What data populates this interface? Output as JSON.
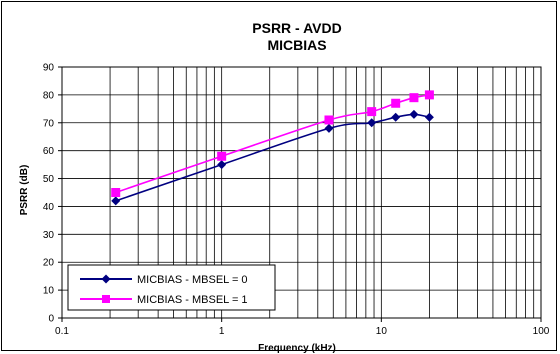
{
  "chart_data": {
    "type": "line",
    "title": "PSRR - AVDD",
    "subtitle": "MICBIAS",
    "xlabel": "Frequency (kHz)",
    "ylabel": "PSRR (dB)",
    "xscale": "log",
    "xlim": [
      0.1,
      100
    ],
    "ylim": [
      0,
      90
    ],
    "x_ticks": [
      0.1,
      1,
      10,
      100
    ],
    "x_tick_labels": [
      "0.1",
      "1",
      "10",
      "100"
    ],
    "y_ticks": [
      0,
      10,
      20,
      30,
      40,
      50,
      60,
      70,
      80,
      90
    ],
    "y_tick_labels": [
      "0",
      "10",
      "20",
      "30",
      "40",
      "50",
      "60",
      "70",
      "80",
      "90"
    ],
    "grid": true,
    "legend_position": "bottom-left",
    "series": [
      {
        "name": "MICBIAS - MBSEL = 0",
        "color": "#000080",
        "marker": "diamond",
        "x": [
          0.217,
          1,
          4.7,
          8.7,
          12.3,
          16,
          20
        ],
        "y": [
          42,
          55,
          68,
          70,
          72,
          73,
          72
        ]
      },
      {
        "name": "MICBIAS - MBSEL = 1",
        "color": "#ff00ff",
        "marker": "square",
        "x": [
          0.217,
          1,
          4.7,
          8.7,
          12.3,
          16,
          20
        ],
        "y": [
          45,
          58,
          71,
          74,
          77,
          79,
          80
        ]
      }
    ]
  }
}
